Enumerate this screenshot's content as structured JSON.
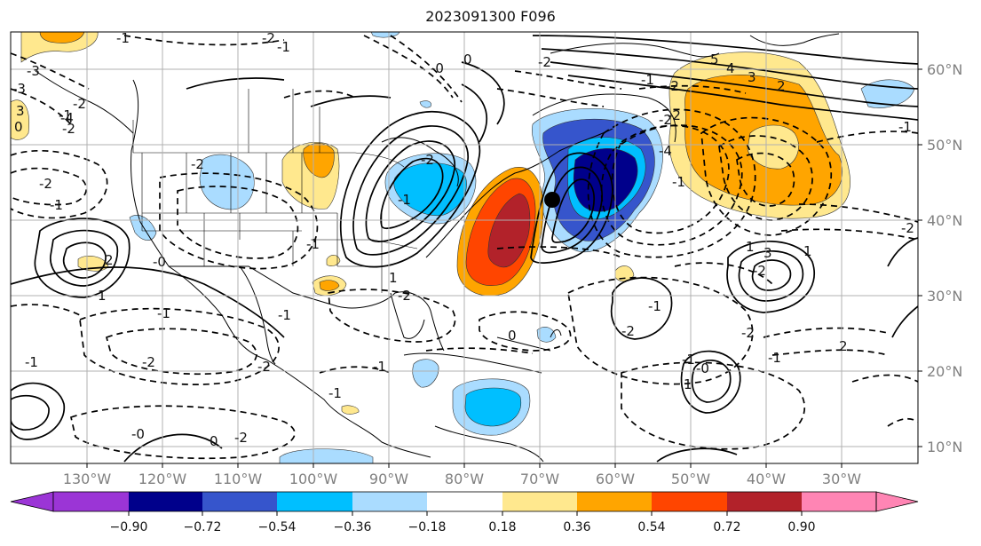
{
  "title": "2023091300 F096",
  "map": {
    "lat_labels": [
      "60°N",
      "50°N",
      "40°N",
      "30°N",
      "20°N",
      "10°N"
    ],
    "lon_labels": [
      "130°W",
      "120°W",
      "110°W",
      "100°W",
      "90°W",
      "80°W",
      "70°W",
      "60°W",
      "50°W",
      "40°W",
      "30°W"
    ],
    "contour_labels": [
      "-1",
      "-2",
      "-1",
      "-3",
      "-2",
      "-1",
      "-2",
      "-3",
      "3",
      "-4",
      "0",
      "-2",
      "-1",
      "-0",
      "-1",
      "-1",
      "-2",
      "-1",
      "-0",
      "0",
      "-2",
      "-1",
      "-2",
      "0",
      "-1",
      "1",
      "-2",
      "1",
      "3",
      "-2",
      "-1",
      "-1",
      "-0",
      "1",
      "-2",
      "-1",
      "-1",
      "-2",
      "5",
      "4",
      "3",
      "2",
      "-1",
      "-2",
      "-2",
      "-4",
      "-1",
      "-2",
      "0",
      "1",
      "-0",
      "-2",
      "-1",
      "2",
      "-2",
      "-2",
      "-1",
      "-2",
      "1",
      "2"
    ]
  },
  "colorbar": {
    "ticks": [
      "−0.90",
      "−0.72",
      "−0.54",
      "−0.36",
      "−0.18",
      "0.18",
      "0.36",
      "0.54",
      "0.72",
      "0.90"
    ],
    "colors": [
      "#9b35d6",
      "#00008b",
      "#3655cc",
      "#00bfff",
      "#aadcff",
      "#ffffff",
      "#ffe88e",
      "#ffa500",
      "#ff4500",
      "#b2222a",
      "#ff85b4"
    ]
  }
}
